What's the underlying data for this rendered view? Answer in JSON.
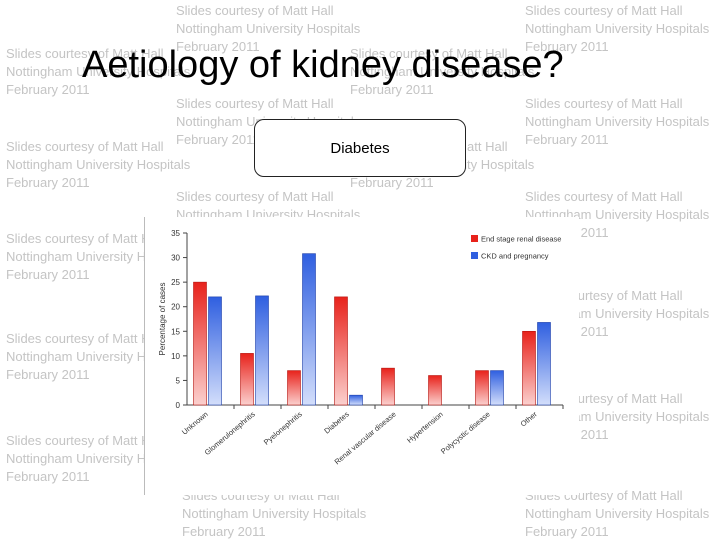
{
  "slide": {
    "title": "Aetiology of kidney disease?",
    "box_label": "Diabetes",
    "watermark": "Slides courtesy of Matt Hall\nNottingham University Hospitals\nFebruary 2011",
    "colors": {
      "red": "#e8221b",
      "blue": "#2f5fe0"
    }
  },
  "chart_data": {
    "type": "bar",
    "categories": [
      "Unknown",
      "Glomerulonephritis",
      "Pyelonephritis",
      "Diabetes",
      "Renal vascular disease",
      "Hypertension",
      "Polycystic disease",
      "Other"
    ],
    "series": [
      {
        "name": "End stage renal disease",
        "values": [
          25,
          10.5,
          7,
          22,
          7.5,
          6,
          7,
          15
        ]
      },
      {
        "name": "CKD and pregnancy",
        "values": [
          22,
          22.2,
          30.8,
          2,
          0,
          0,
          7,
          16.8
        ]
      }
    ],
    "ylabel": "Percentage of cases",
    "xlabel": "",
    "ylim": [
      0,
      35
    ],
    "yticks": [
      0,
      5,
      10,
      15,
      20,
      25,
      30,
      35
    ],
    "grid": false,
    "legend": "top-right"
  }
}
